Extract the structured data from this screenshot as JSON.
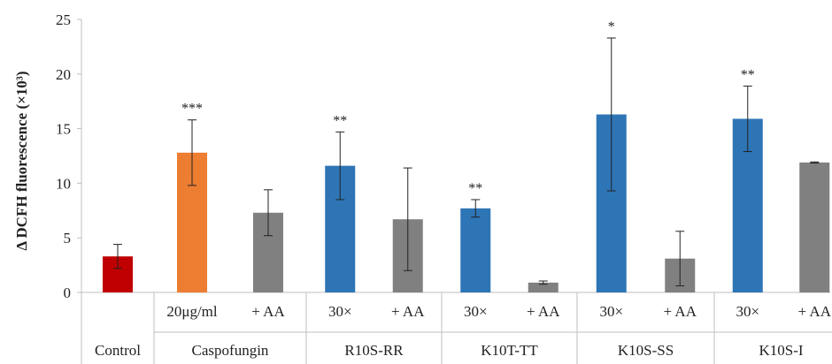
{
  "chart_data": {
    "type": "bar",
    "ylabel": "Δ DCFH fluorescence (×10³)",
    "ylim": [
      0,
      25
    ],
    "yticks": [
      0,
      5,
      10,
      15,
      20,
      25
    ],
    "grid": false,
    "groups": [
      {
        "name": "Control",
        "bars": [
          {
            "label": "",
            "value": 3.3,
            "err": 1.1,
            "color": "#c00000",
            "sig": ""
          }
        ]
      },
      {
        "name": "Caspofungin",
        "bars": [
          {
            "label": "20μg/ml",
            "value": 12.8,
            "err": 3.0,
            "color": "#ed7d31",
            "sig": "***"
          },
          {
            "label": "+ AA",
            "value": 7.3,
            "err": 2.1,
            "color": "#808080",
            "sig": ""
          }
        ]
      },
      {
        "name": "R10S-RR",
        "bars": [
          {
            "label": "30×",
            "value": 11.6,
            "err": 3.1,
            "color": "#2e75b6",
            "sig": "**"
          },
          {
            "label": "+ AA",
            "value": 6.7,
            "err": 4.7,
            "color": "#808080",
            "sig": ""
          }
        ]
      },
      {
        "name": "K10T-TT",
        "bars": [
          {
            "label": "30×",
            "value": 7.7,
            "err": 0.8,
            "color": "#2e75b6",
            "sig": "**"
          },
          {
            "label": "+ AA",
            "value": 0.9,
            "err": 0.15,
            "color": "#808080",
            "sig": ""
          }
        ]
      },
      {
        "name": "K10S-SS",
        "bars": [
          {
            "label": "30×",
            "value": 16.3,
            "err": 7.0,
            "color": "#2e75b6",
            "sig": "*"
          },
          {
            "label": "+ AA",
            "value": 3.1,
            "err": 2.5,
            "color": "#808080",
            "sig": ""
          }
        ]
      },
      {
        "name": "K10S-I",
        "bars": [
          {
            "label": "30×",
            "value": 15.9,
            "err": 3.0,
            "color": "#2e75b6",
            "sig": "**"
          },
          {
            "label": "+ AA",
            "value": 11.9,
            "err": 0.05,
            "color": "#808080",
            "sig": ""
          }
        ]
      }
    ]
  }
}
